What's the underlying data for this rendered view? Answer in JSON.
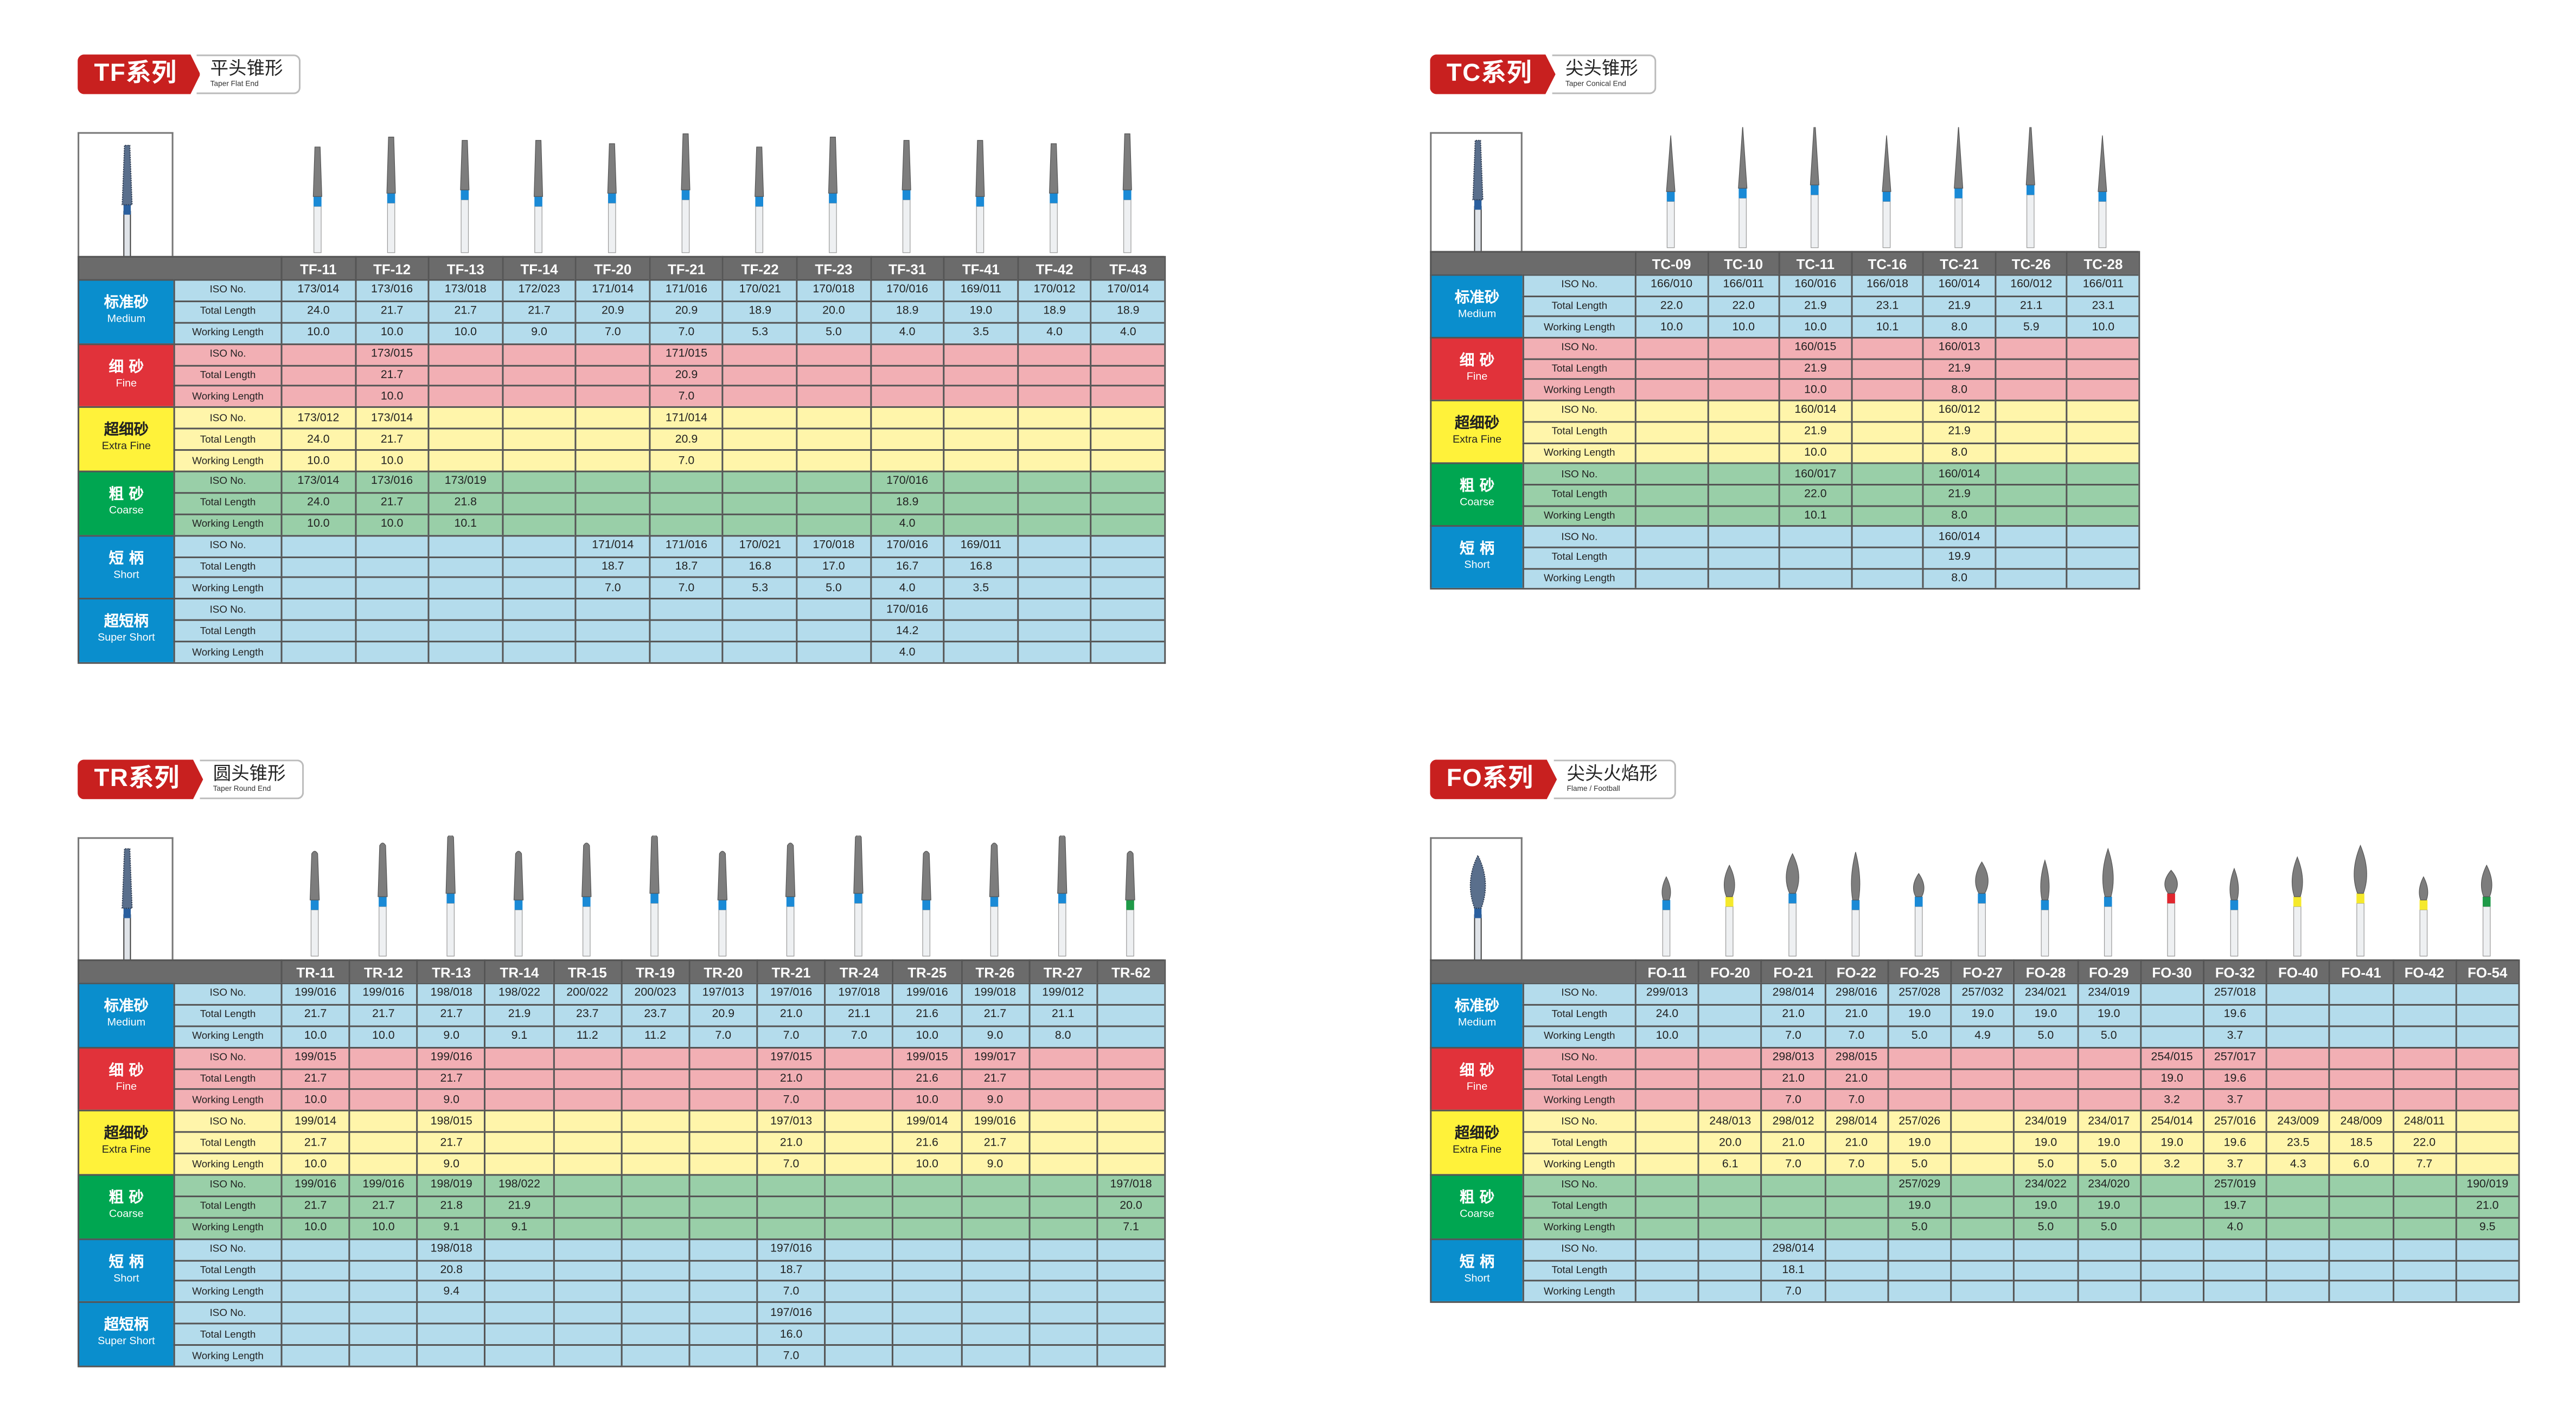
{
  "row_labels": [
    "ISO No.",
    "Total Length",
    "Working Length"
  ],
  "grades": {
    "medium": {
      "cn": "标准砂",
      "en": "Medium",
      "color": "#0a8ecd",
      "row_color": "#b4dcec",
      "text": "#ffffff"
    },
    "fine": {
      "cn": "细 砂",
      "en": "Fine",
      "color": "#e1323a",
      "row_color": "#f2afb4",
      "text": "#ffffff"
    },
    "extra_fine": {
      "cn": "超细砂",
      "en": "Extra Fine",
      "color": "#fff23a",
      "row_color": "#fff5aa",
      "text": "#222222"
    },
    "coarse": {
      "cn": "粗 砂",
      "en": "Coarse",
      "color": "#00a651",
      "row_color": "#99cfa8",
      "text": "#ffffff"
    },
    "short": {
      "cn": "短 柄",
      "en": "Short",
      "color": "#0a8ecd",
      "row_color": "#b4dcec",
      "text": "#ffffff"
    },
    "super_short": {
      "cn": "超短柄",
      "en": "Super Short",
      "color": "#0a8ecd",
      "row_color": "#b4dcec",
      "text": "#ffffff"
    }
  },
  "ring_colors": {
    "blue": "#1a8ad6",
    "yellow": "#f5e92c",
    "red": "#e1262e",
    "green": "#1f9a48"
  },
  "series": [
    {
      "code": "TF系列",
      "name_cn": "平头锥形",
      "name_en": "Taper Flat End",
      "shape": "flat",
      "grades": [
        "medium",
        "fine",
        "extra_fine",
        "coarse",
        "short",
        "super_short"
      ],
      "columns": [
        {
          "model": "TF-11",
          "ring": "blue",
          "cells": {
            "medium": [
              "173/014",
              "24.0",
              "10.0"
            ],
            "extra_fine": [
              "173/012",
              "24.0",
              "10.0"
            ],
            "coarse": [
              "173/014",
              "24.0",
              "10.0"
            ]
          }
        },
        {
          "model": "TF-12",
          "ring": "blue",
          "cells": {
            "medium": [
              "173/016",
              "21.7",
              "10.0"
            ],
            "fine": [
              "173/015",
              "21.7",
              "10.0"
            ],
            "extra_fine": [
              "173/014",
              "21.7",
              "10.0"
            ],
            "coarse": [
              "173/016",
              "21.7",
              "10.0"
            ]
          }
        },
        {
          "model": "TF-13",
          "ring": "blue",
          "cells": {
            "medium": [
              "173/018",
              "21.7",
              "10.0"
            ],
            "coarse": [
              "173/019",
              "21.8",
              "10.1"
            ]
          }
        },
        {
          "model": "TF-14",
          "ring": "blue",
          "cells": {
            "medium": [
              "172/023",
              "21.7",
              "9.0"
            ]
          }
        },
        {
          "model": "TF-20",
          "ring": "blue",
          "cells": {
            "medium": [
              "171/014",
              "20.9",
              "7.0"
            ],
            "short": [
              "171/014",
              "18.7",
              "7.0"
            ]
          }
        },
        {
          "model": "TF-21",
          "ring": "blue",
          "cells": {
            "medium": [
              "171/016",
              "20.9",
              "7.0"
            ],
            "fine": [
              "171/015",
              "20.9",
              "7.0"
            ],
            "extra_fine": [
              "171/014",
              "20.9",
              "7.0"
            ],
            "short": [
              "171/016",
              "18.7",
              "7.0"
            ]
          }
        },
        {
          "model": "TF-22",
          "ring": "blue",
          "cells": {
            "medium": [
              "170/021",
              "18.9",
              "5.3"
            ],
            "short": [
              "170/021",
              "16.8",
              "5.3"
            ]
          }
        },
        {
          "model": "TF-23",
          "ring": "blue",
          "cells": {
            "medium": [
              "170/018",
              "20.0",
              "5.0"
            ],
            "short": [
              "170/018",
              "17.0",
              "5.0"
            ]
          }
        },
        {
          "model": "TF-31",
          "ring": "blue",
          "cells": {
            "medium": [
              "170/016",
              "18.9",
              "4.0"
            ],
            "coarse": [
              "170/016",
              "18.9",
              "4.0"
            ],
            "short": [
              "170/016",
              "16.7",
              "4.0"
            ],
            "super_short": [
              "170/016",
              "14.2",
              "4.0"
            ]
          }
        },
        {
          "model": "TF-41",
          "ring": "blue",
          "cells": {
            "medium": [
              "169/011",
              "19.0",
              "3.5"
            ],
            "short": [
              "169/011",
              "16.8",
              "3.5"
            ]
          }
        },
        {
          "model": "TF-42",
          "ring": "blue",
          "cells": {
            "medium": [
              "170/012",
              "18.9",
              "4.0"
            ]
          }
        },
        {
          "model": "TF-43",
          "ring": "blue",
          "cells": {
            "medium": [
              "170/014",
              "18.9",
              "4.0"
            ]
          }
        }
      ]
    },
    {
      "code": "TC系列",
      "name_cn": "尖头锥形",
      "name_en": "Taper Conical End",
      "shape": "conical",
      "grades": [
        "medium",
        "fine",
        "extra_fine",
        "coarse",
        "short"
      ],
      "columns": [
        {
          "model": "TC-09",
          "ring": "blue",
          "cells": {
            "medium": [
              "166/010",
              "22.0",
              "10.0"
            ]
          }
        },
        {
          "model": "TC-10",
          "ring": "blue",
          "cells": {
            "medium": [
              "166/011",
              "22.0",
              "10.0"
            ]
          }
        },
        {
          "model": "TC-11",
          "ring": "blue",
          "cells": {
            "medium": [
              "160/016",
              "21.9",
              "10.0"
            ],
            "fine": [
              "160/015",
              "21.9",
              "10.0"
            ],
            "extra_fine": [
              "160/014",
              "21.9",
              "10.0"
            ],
            "coarse": [
              "160/017",
              "22.0",
              "10.1"
            ]
          }
        },
        {
          "model": "TC-16",
          "ring": "blue",
          "cells": {
            "medium": [
              "166/018",
              "23.1",
              "10.1"
            ]
          }
        },
        {
          "model": "TC-21",
          "ring": "blue",
          "cells": {
            "medium": [
              "160/014",
              "21.9",
              "8.0"
            ],
            "fine": [
              "160/013",
              "21.9",
              "8.0"
            ],
            "extra_fine": [
              "160/012",
              "21.9",
              "8.0"
            ],
            "coarse": [
              "160/014",
              "21.9",
              "8.0"
            ],
            "short": [
              "160/014",
              "19.9",
              "8.0"
            ]
          }
        },
        {
          "model": "TC-26",
          "ring": "blue",
          "cells": {
            "medium": [
              "160/012",
              "21.1",
              "5.9"
            ]
          }
        },
        {
          "model": "TC-28",
          "ring": "blue",
          "cells": {
            "medium": [
              "166/011",
              "23.1",
              "10.0"
            ]
          }
        }
      ]
    },
    {
      "code": "TR系列",
      "name_cn": "圆头锥形",
      "name_en": "Taper Round End",
      "shape": "round",
      "grades": [
        "medium",
        "fine",
        "extra_fine",
        "coarse",
        "short",
        "super_short"
      ],
      "columns": [
        {
          "model": "TR-11",
          "ring": "blue",
          "cells": {
            "medium": [
              "199/016",
              "21.7",
              "10.0"
            ],
            "fine": [
              "199/015",
              "21.7",
              "10.0"
            ],
            "extra_fine": [
              "199/014",
              "21.7",
              "10.0"
            ],
            "coarse": [
              "199/016",
              "21.7",
              "10.0"
            ]
          }
        },
        {
          "model": "TR-12",
          "ring": "blue",
          "cells": {
            "medium": [
              "199/016",
              "21.7",
              "10.0"
            ],
            "coarse": [
              "199/016",
              "21.7",
              "10.0"
            ]
          }
        },
        {
          "model": "TR-13",
          "ring": "blue",
          "cells": {
            "medium": [
              "198/018",
              "21.7",
              "9.0"
            ],
            "fine": [
              "199/016",
              "21.7",
              "9.0"
            ],
            "extra_fine": [
              "198/015",
              "21.7",
              "9.0"
            ],
            "coarse": [
              "198/019",
              "21.8",
              "9.1"
            ],
            "short": [
              "198/018",
              "20.8",
              "9.4"
            ]
          }
        },
        {
          "model": "TR-14",
          "ring": "blue",
          "cells": {
            "medium": [
              "198/022",
              "21.9",
              "9.1"
            ],
            "coarse": [
              "198/022",
              "21.9",
              "9.1"
            ]
          }
        },
        {
          "model": "TR-15",
          "ring": "blue",
          "cells": {
            "medium": [
              "200/022",
              "23.7",
              "11.2"
            ]
          }
        },
        {
          "model": "TR-19",
          "ring": "blue",
          "cells": {
            "medium": [
              "200/023",
              "23.7",
              "11.2"
            ]
          }
        },
        {
          "model": "TR-20",
          "ring": "blue",
          "cells": {
            "medium": [
              "197/013",
              "20.9",
              "7.0"
            ]
          }
        },
        {
          "model": "TR-21",
          "ring": "blue",
          "cells": {
            "medium": [
              "197/016",
              "21.0",
              "7.0"
            ],
            "fine": [
              "197/015",
              "21.0",
              "7.0"
            ],
            "extra_fine": [
              "197/013",
              "21.0",
              "7.0"
            ],
            "short": [
              "197/016",
              "18.7",
              "7.0"
            ],
            "super_short": [
              "197/016",
              "16.0",
              "7.0"
            ]
          }
        },
        {
          "model": "TR-24",
          "ring": "blue",
          "cells": {
            "medium": [
              "197/018",
              "21.1",
              "7.0"
            ]
          }
        },
        {
          "model": "TR-25",
          "ring": "blue",
          "cells": {
            "medium": [
              "199/016",
              "21.6",
              "10.0"
            ],
            "fine": [
              "199/015",
              "21.6",
              "10.0"
            ],
            "extra_fine": [
              "199/014",
              "21.6",
              "10.0"
            ]
          }
        },
        {
          "model": "TR-26",
          "ring": "blue",
          "cells": {
            "medium": [
              "199/018",
              "21.7",
              "9.0"
            ],
            "fine": [
              "199/017",
              "21.7",
              "9.0"
            ],
            "extra_fine": [
              "199/016",
              "21.7",
              "9.0"
            ]
          }
        },
        {
          "model": "TR-27",
          "ring": "blue",
          "cells": {
            "medium": [
              "199/012",
              "21.1",
              "8.0"
            ]
          }
        },
        {
          "model": "TR-62",
          "ring": "green",
          "cells": {
            "coarse": [
              "197/018",
              "20.0",
              "7.1"
            ]
          }
        }
      ]
    },
    {
      "code": "FO系列",
      "name_cn": "尖头火焰形",
      "name_en": "Flame / Football",
      "shape": "flame",
      "grades": [
        "medium",
        "fine",
        "extra_fine",
        "coarse",
        "short"
      ],
      "columns": [
        {
          "model": "FO-11",
          "ring": "blue",
          "cells": {
            "medium": [
              "299/013",
              "24.0",
              "10.0"
            ]
          }
        },
        {
          "model": "FO-20",
          "ring": "yellow",
          "cells": {
            "extra_fine": [
              "248/013",
              "20.0",
              "6.1"
            ]
          }
        },
        {
          "model": "FO-21",
          "ring": "blue",
          "cells": {
            "medium": [
              "298/014",
              "21.0",
              "7.0"
            ],
            "fine": [
              "298/013",
              "21.0",
              "7.0"
            ],
            "extra_fine": [
              "298/012",
              "21.0",
              "7.0"
            ],
            "short": [
              "298/014",
              "18.1",
              "7.0"
            ]
          }
        },
        {
          "model": "FO-22",
          "ring": "blue",
          "cells": {
            "medium": [
              "298/016",
              "21.0",
              "7.0"
            ],
            "fine": [
              "298/015",
              "21.0",
              "7.0"
            ],
            "extra_fine": [
              "298/014",
              "21.0",
              "7.0"
            ]
          }
        },
        {
          "model": "FO-25",
          "ring": "blue",
          "cells": {
            "medium": [
              "257/028",
              "19.0",
              "5.0"
            ],
            "extra_fine": [
              "257/026",
              "19.0",
              "5.0"
            ],
            "coarse": [
              "257/029",
              "19.0",
              "5.0"
            ]
          }
        },
        {
          "model": "FO-27",
          "ring": "blue",
          "cells": {
            "medium": [
              "257/032",
              "19.0",
              "4.9"
            ]
          }
        },
        {
          "model": "FO-28",
          "ring": "blue",
          "cells": {
            "medium": [
              "234/021",
              "19.0",
              "5.0"
            ],
            "extra_fine": [
              "234/019",
              "19.0",
              "5.0"
            ],
            "coarse": [
              "234/022",
              "19.0",
              "5.0"
            ]
          }
        },
        {
          "model": "FO-29",
          "ring": "blue",
          "cells": {
            "medium": [
              "234/019",
              "19.0",
              "5.0"
            ],
            "extra_fine": [
              "234/017",
              "19.0",
              "5.0"
            ],
            "coarse": [
              "234/020",
              "19.0",
              "5.0"
            ]
          }
        },
        {
          "model": "FO-30",
          "ring": "red",
          "cells": {
            "fine": [
              "254/015",
              "19.0",
              "3.2"
            ],
            "extra_fine": [
              "254/014",
              "19.0",
              "3.2"
            ]
          }
        },
        {
          "model": "FO-32",
          "ring": "blue",
          "cells": {
            "medium": [
              "257/018",
              "19.6",
              "3.7"
            ],
            "fine": [
              "257/017",
              "19.6",
              "3.7"
            ],
            "extra_fine": [
              "257/016",
              "19.6",
              "3.7"
            ],
            "coarse": [
              "257/019",
              "19.7",
              "4.0"
            ]
          }
        },
        {
          "model": "FO-40",
          "ring": "yellow",
          "cells": {
            "extra_fine": [
              "243/009",
              "23.5",
              "4.3"
            ]
          }
        },
        {
          "model": "FO-41",
          "ring": "yellow",
          "cells": {
            "extra_fine": [
              "248/009",
              "18.5",
              "6.0"
            ]
          }
        },
        {
          "model": "FO-42",
          "ring": "yellow",
          "cells": {
            "extra_fine": [
              "248/011",
              "22.0",
              "7.7"
            ]
          }
        },
        {
          "model": "FO-54",
          "ring": "green",
          "cells": {
            "coarse": [
              "190/019",
              "21.0",
              "9.5"
            ]
          }
        }
      ]
    }
  ]
}
